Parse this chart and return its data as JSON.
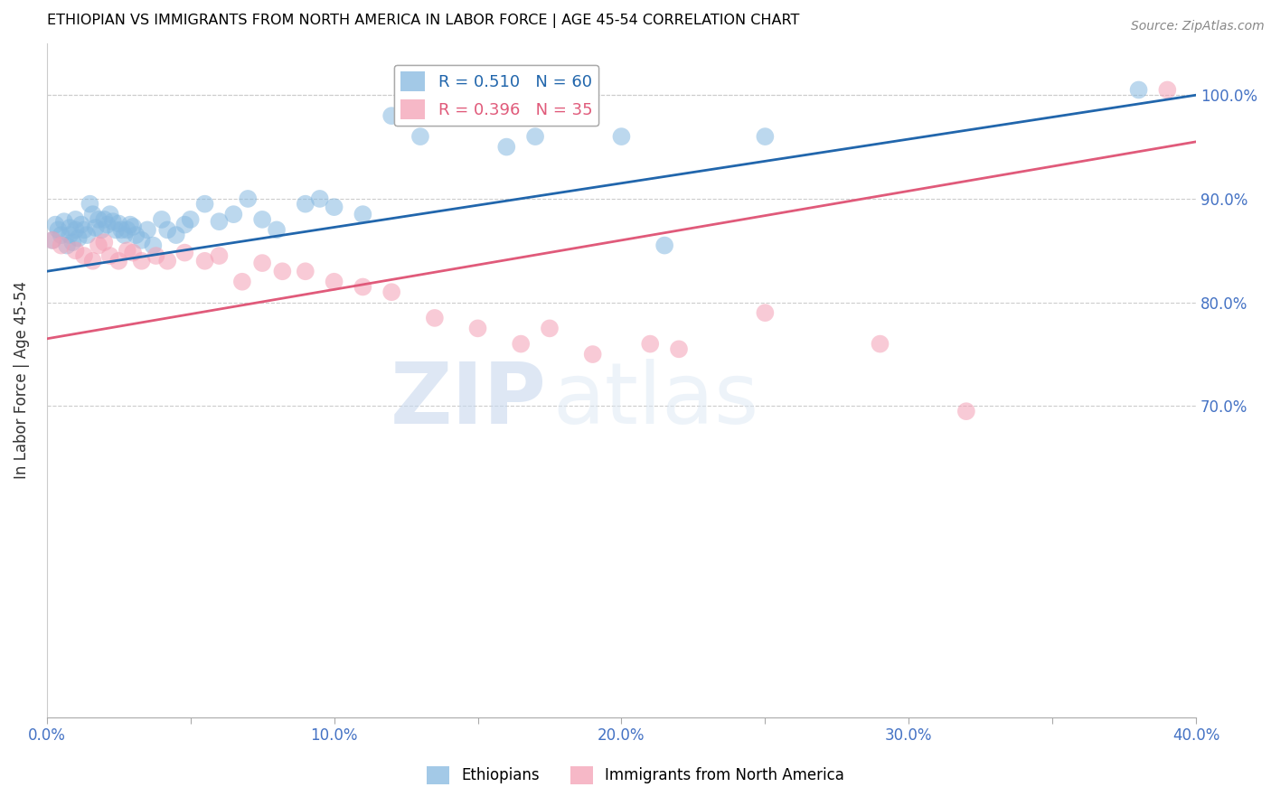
{
  "title": "ETHIOPIAN VS IMMIGRANTS FROM NORTH AMERICA IN LABOR FORCE | AGE 45-54 CORRELATION CHART",
  "source": "Source: ZipAtlas.com",
  "ylabel": "In Labor Force | Age 45-54",
  "xlabel": "",
  "xlim": [
    0.0,
    0.4
  ],
  "ylim": [
    0.4,
    1.05
  ],
  "yticks": [
    0.7,
    0.8,
    0.9,
    1.0
  ],
  "ytick_labels": [
    "70.0%",
    "80.0%",
    "90.0%",
    "100.0%"
  ],
  "xticks": [
    0.0,
    0.05,
    0.1,
    0.15,
    0.2,
    0.25,
    0.3,
    0.35,
    0.4
  ],
  "xtick_labels": [
    "0.0%",
    "",
    "10.0%",
    "",
    "20.0%",
    "",
    "30.0%",
    "",
    "40.0%"
  ],
  "blue_color": "#85b8e0",
  "pink_color": "#f4a0b5",
  "blue_line_color": "#2166ac",
  "pink_line_color": "#e05a7a",
  "axis_color": "#4472C4",
  "title_color": "#000000",
  "watermark_zip": "ZIP",
  "watermark_atlas": "atlas",
  "blue_line_x0": 0.0,
  "blue_line_y0": 0.83,
  "blue_line_x1": 0.4,
  "blue_line_y1": 1.0,
  "pink_line_x0": 0.0,
  "pink_line_y0": 0.765,
  "pink_line_x1": 0.4,
  "pink_line_y1": 0.955,
  "blue_scatter_x": [
    0.002,
    0.003,
    0.004,
    0.005,
    0.006,
    0.007,
    0.008,
    0.008,
    0.009,
    0.01,
    0.01,
    0.011,
    0.012,
    0.013,
    0.014,
    0.015,
    0.016,
    0.017,
    0.018,
    0.019,
    0.02,
    0.021,
    0.022,
    0.023,
    0.024,
    0.025,
    0.026,
    0.027,
    0.028,
    0.029,
    0.03,
    0.031,
    0.033,
    0.035,
    0.037,
    0.04,
    0.042,
    0.045,
    0.048,
    0.05,
    0.055,
    0.06,
    0.065,
    0.07,
    0.075,
    0.08,
    0.09,
    0.095,
    0.1,
    0.11,
    0.12,
    0.13,
    0.14,
    0.16,
    0.17,
    0.185,
    0.2,
    0.215,
    0.25,
    0.38
  ],
  "blue_scatter_y": [
    0.86,
    0.875,
    0.87,
    0.865,
    0.878,
    0.855,
    0.865,
    0.872,
    0.858,
    0.87,
    0.88,
    0.862,
    0.875,
    0.87,
    0.865,
    0.895,
    0.885,
    0.872,
    0.88,
    0.87,
    0.88,
    0.875,
    0.885,
    0.878,
    0.87,
    0.876,
    0.87,
    0.865,
    0.87,
    0.875,
    0.873,
    0.865,
    0.86,
    0.87,
    0.855,
    0.88,
    0.87,
    0.865,
    0.875,
    0.88,
    0.895,
    0.878,
    0.885,
    0.9,
    0.88,
    0.87,
    0.895,
    0.9,
    0.892,
    0.885,
    0.98,
    0.96,
    1.0,
    0.95,
    0.96,
    1.005,
    0.96,
    0.855,
    0.96,
    1.005
  ],
  "pink_scatter_x": [
    0.002,
    0.005,
    0.01,
    0.013,
    0.016,
    0.018,
    0.02,
    0.022,
    0.025,
    0.028,
    0.03,
    0.033,
    0.038,
    0.042,
    0.048,
    0.055,
    0.06,
    0.068,
    0.075,
    0.082,
    0.09,
    0.1,
    0.11,
    0.12,
    0.135,
    0.15,
    0.165,
    0.175,
    0.19,
    0.21,
    0.22,
    0.25,
    0.29,
    0.32,
    0.39
  ],
  "pink_scatter_y": [
    0.86,
    0.855,
    0.85,
    0.845,
    0.84,
    0.855,
    0.858,
    0.845,
    0.84,
    0.85,
    0.848,
    0.84,
    0.845,
    0.84,
    0.848,
    0.84,
    0.845,
    0.82,
    0.838,
    0.83,
    0.83,
    0.82,
    0.815,
    0.81,
    0.785,
    0.775,
    0.76,
    0.775,
    0.75,
    0.76,
    0.755,
    0.79,
    0.76,
    0.695,
    1.005
  ],
  "legend_blue_label": "R = 0.510   N = 60",
  "legend_pink_label": "R = 0.396   N = 35",
  "bottom_legend_blue": "Ethiopians",
  "bottom_legend_pink": "Immigrants from North America"
}
